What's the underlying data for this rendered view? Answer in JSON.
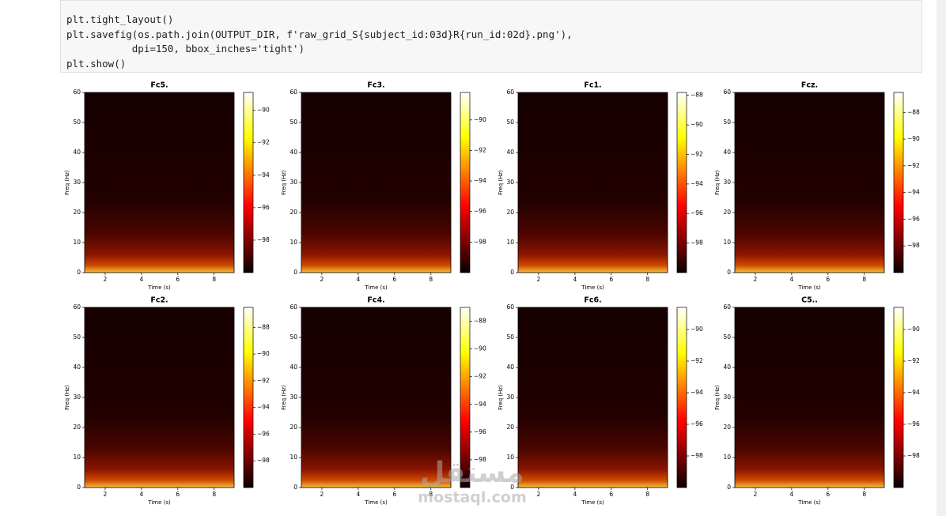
{
  "code": {
    "lines": [
      "plt.tight_layout()",
      "plt.savefig(os.path.join(OUTPUT_DIR, f'raw_grid_S{subject_id:03d}R{run_id:02d}.png'),",
      "           dpi=150, bbox_inches='tight')",
      "plt.show()"
    ]
  },
  "watermark": {
    "brand": "مستقل",
    "site": "mostaql.com"
  },
  "chart_data": [
    {
      "type": "spectrogram",
      "title": "Fc5.",
      "x_label": "Time (s)",
      "y_label": "Freq (Hz)",
      "cmap": "hot",
      "xlim": [
        0.87,
        9.1
      ],
      "xticks": [
        2,
        4,
        6,
        8
      ],
      "ylim": [
        0,
        60
      ],
      "yticks": [
        0,
        10,
        20,
        30,
        40,
        50,
        60
      ],
      "clim": [
        -100,
        -88.9
      ],
      "cticks": [
        {
          "value": -90,
          "label": "−90"
        },
        {
          "value": -92,
          "label": "−92"
        },
        {
          "value": -94,
          "label": "−94"
        },
        {
          "value": -96,
          "label": "−96"
        },
        {
          "value": -98,
          "label": "−98"
        }
      ]
    },
    {
      "type": "spectrogram",
      "title": "Fc3.",
      "x_label": "Time (s)",
      "y_label": "Freq (Hz)",
      "cmap": "hot",
      "xlim": [
        0.87,
        9.1
      ],
      "xticks": [
        2,
        4,
        6,
        8
      ],
      "ylim": [
        0,
        60
      ],
      "yticks": [
        0,
        10,
        20,
        30,
        40,
        50,
        60
      ],
      "clim": [
        -100,
        -88.2
      ],
      "cticks": [
        {
          "value": -90,
          "label": "−90"
        },
        {
          "value": -92,
          "label": "−92"
        },
        {
          "value": -94,
          "label": "−94"
        },
        {
          "value": -96,
          "label": "−96"
        },
        {
          "value": -98,
          "label": "−98"
        }
      ]
    },
    {
      "type": "spectrogram",
      "title": "Fc1.",
      "x_label": "Time (s)",
      "y_label": "Freq (Hz)",
      "cmap": "hot",
      "xlim": [
        0.87,
        9.1
      ],
      "xticks": [
        2,
        4,
        6,
        8
      ],
      "ylim": [
        0,
        60
      ],
      "yticks": [
        0,
        10,
        20,
        30,
        40,
        50,
        60
      ],
      "clim": [
        -100,
        -87.8
      ],
      "cticks": [
        {
          "value": -88,
          "label": "−88"
        },
        {
          "value": -90,
          "label": "−90"
        },
        {
          "value": -92,
          "label": "−92"
        },
        {
          "value": -94,
          "label": "−94"
        },
        {
          "value": -96,
          "label": "−96"
        },
        {
          "value": -98,
          "label": "−98"
        }
      ]
    },
    {
      "type": "spectrogram",
      "title": "Fcz.",
      "x_label": "Time (s)",
      "y_label": "Freq (Hz)",
      "cmap": "hot",
      "xlim": [
        0.87,
        9.1
      ],
      "xticks": [
        2,
        4,
        6,
        8
      ],
      "ylim": [
        0,
        60
      ],
      "yticks": [
        0,
        10,
        20,
        30,
        40,
        50,
        60
      ],
      "clim": [
        -100,
        -86.5
      ],
      "cticks": [
        {
          "value": -88,
          "label": "−88"
        },
        {
          "value": -90,
          "label": "−90"
        },
        {
          "value": -92,
          "label": "−92"
        },
        {
          "value": -94,
          "label": "−94"
        },
        {
          "value": -96,
          "label": "−96"
        },
        {
          "value": -98,
          "label": "−98"
        }
      ]
    },
    {
      "type": "spectrogram",
      "title": "Fc2.",
      "x_label": "Time (s)",
      "y_label": "Freq (Hz)",
      "cmap": "hot",
      "xlim": [
        0.87,
        9.1
      ],
      "xticks": [
        2,
        4,
        6,
        8
      ],
      "ylim": [
        0,
        60
      ],
      "yticks": [
        0,
        10,
        20,
        30,
        40,
        50,
        60
      ],
      "clim": [
        -100,
        -86.5
      ],
      "cticks": [
        {
          "value": -88,
          "label": "−88"
        },
        {
          "value": -90,
          "label": "−90"
        },
        {
          "value": -92,
          "label": "−92"
        },
        {
          "value": -94,
          "label": "−94"
        },
        {
          "value": -96,
          "label": "−96"
        },
        {
          "value": -98,
          "label": "−98"
        }
      ]
    },
    {
      "type": "spectrogram",
      "title": "Fc4.",
      "x_label": "Time (s)",
      "y_label": "Freq (Hz)",
      "cmap": "hot",
      "xlim": [
        0.87,
        9.1
      ],
      "xticks": [
        2,
        4,
        6,
        8
      ],
      "ylim": [
        0,
        60
      ],
      "yticks": [
        0,
        10,
        20,
        30,
        40,
        50,
        60
      ],
      "clim": [
        -100,
        -87.0
      ],
      "cticks": [
        {
          "value": -88,
          "label": "−88"
        },
        {
          "value": -90,
          "label": "−90"
        },
        {
          "value": -92,
          "label": "−92"
        },
        {
          "value": -94,
          "label": "−94"
        },
        {
          "value": -96,
          "label": "−96"
        },
        {
          "value": -98,
          "label": "−98"
        }
      ]
    },
    {
      "type": "spectrogram",
      "title": "Fc6.",
      "x_label": "Time (s)",
      "y_label": "Freq (Hz)",
      "cmap": "hot",
      "xlim": [
        0.87,
        9.1
      ],
      "xticks": [
        2,
        4,
        6,
        8
      ],
      "ylim": [
        0,
        60
      ],
      "yticks": [
        0,
        10,
        20,
        30,
        40,
        50,
        60
      ],
      "clim": [
        -100,
        -88.6
      ],
      "cticks": [
        {
          "value": -90,
          "label": "−90"
        },
        {
          "value": -92,
          "label": "−92"
        },
        {
          "value": -94,
          "label": "−94"
        },
        {
          "value": -96,
          "label": "−96"
        },
        {
          "value": -98,
          "label": "−98"
        }
      ]
    },
    {
      "type": "spectrogram",
      "title": "C5..",
      "x_label": "Time (s)",
      "y_label": "Freq (Hz)",
      "cmap": "hot",
      "xlim": [
        0.87,
        9.1
      ],
      "xticks": [
        2,
        4,
        6,
        8
      ],
      "ylim": [
        0,
        60
      ],
      "yticks": [
        0,
        10,
        20,
        30,
        40,
        50,
        60
      ],
      "clim": [
        -100,
        -88.6
      ],
      "cticks": [
        {
          "value": -90,
          "label": "−90"
        },
        {
          "value": -92,
          "label": "−92"
        },
        {
          "value": -94,
          "label": "−94"
        },
        {
          "value": -96,
          "label": "−96"
        },
        {
          "value": -98,
          "label": "−98"
        }
      ]
    }
  ]
}
